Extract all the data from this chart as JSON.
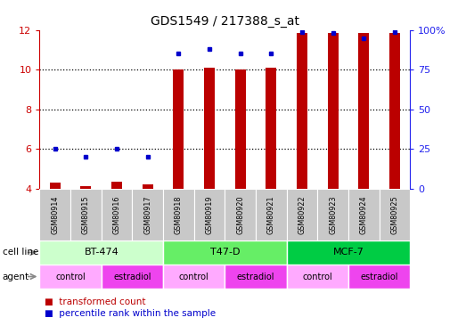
{
  "title": "GDS1549 / 217388_s_at",
  "samples": [
    "GSM80914",
    "GSM80915",
    "GSM80916",
    "GSM80917",
    "GSM80918",
    "GSM80919",
    "GSM80920",
    "GSM80921",
    "GSM80922",
    "GSM80923",
    "GSM80924",
    "GSM80925"
  ],
  "transformed_count": [
    4.3,
    4.15,
    4.35,
    4.2,
    10.0,
    10.1,
    10.0,
    10.1,
    11.85,
    11.85,
    11.85,
    11.85
  ],
  "percentile_rank": [
    25,
    20,
    25,
    20,
    85,
    88,
    85,
    85,
    99,
    98,
    95,
    99
  ],
  "cell_lines": [
    {
      "label": "BT-474",
      "start": 0,
      "end": 4,
      "color": "#ccffcc"
    },
    {
      "label": "T47-D",
      "start": 4,
      "end": 8,
      "color": "#66ee66"
    },
    {
      "label": "MCF-7",
      "start": 8,
      "end": 12,
      "color": "#00cc44"
    }
  ],
  "agents": [
    {
      "label": "control",
      "start": 0,
      "end": 2,
      "color": "#ffaaff"
    },
    {
      "label": "estradiol",
      "start": 2,
      "end": 4,
      "color": "#ee44ee"
    },
    {
      "label": "control",
      "start": 4,
      "end": 6,
      "color": "#ffaaff"
    },
    {
      "label": "estradiol",
      "start": 6,
      "end": 8,
      "color": "#ee44ee"
    },
    {
      "label": "control",
      "start": 8,
      "end": 10,
      "color": "#ffaaff"
    },
    {
      "label": "estradiol",
      "start": 10,
      "end": 12,
      "color": "#ee44ee"
    }
  ],
  "ylim": [
    4,
    12
  ],
  "yticks_left": [
    4,
    6,
    8,
    10,
    12
  ],
  "yticks_right_vals": [
    0,
    25,
    50,
    75,
    100
  ],
  "yticks_right_labels": [
    "0",
    "25",
    "50",
    "75",
    "100%"
  ],
  "bar_color": "#bb0000",
  "dot_color": "#0000cc",
  "bar_width": 0.35,
  "tick_color_left": "#cc0000",
  "tick_color_right": "#2222ee"
}
